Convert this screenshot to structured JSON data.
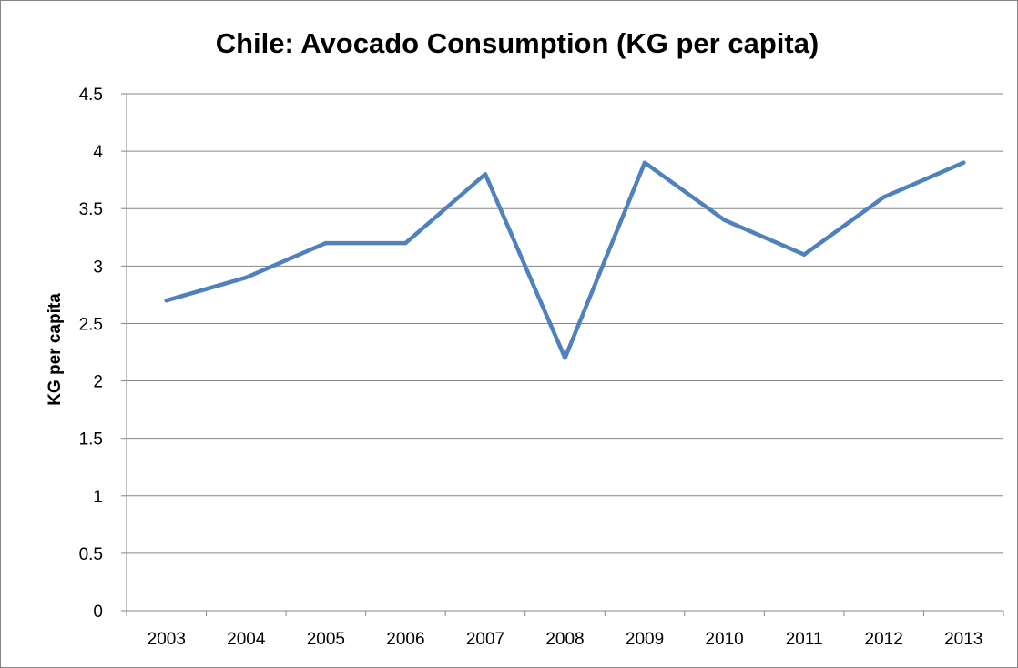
{
  "chart_data": {
    "type": "line",
    "title": "Chile: Avocado Consumption (KG per capita)",
    "xlabel": "",
    "ylabel": "KG per capita",
    "categories": [
      "2003",
      "2004",
      "2005",
      "2006",
      "2007",
      "2008",
      "2009",
      "2010",
      "2011",
      "2012",
      "2013"
    ],
    "series": [
      {
        "values": [
          2.7,
          2.9,
          3.2,
          3.2,
          3.8,
          2.2,
          3.9,
          3.4,
          3.1,
          3.6,
          3.9
        ],
        "color": "#4f81bd"
      }
    ],
    "ylim": [
      0,
      4.5
    ],
    "yticks": [
      "0",
      "0.5",
      "1",
      "1.5",
      "2",
      "2.5",
      "3",
      "3.5",
      "4",
      "4.5"
    ],
    "grid": true,
    "legend": "none"
  }
}
